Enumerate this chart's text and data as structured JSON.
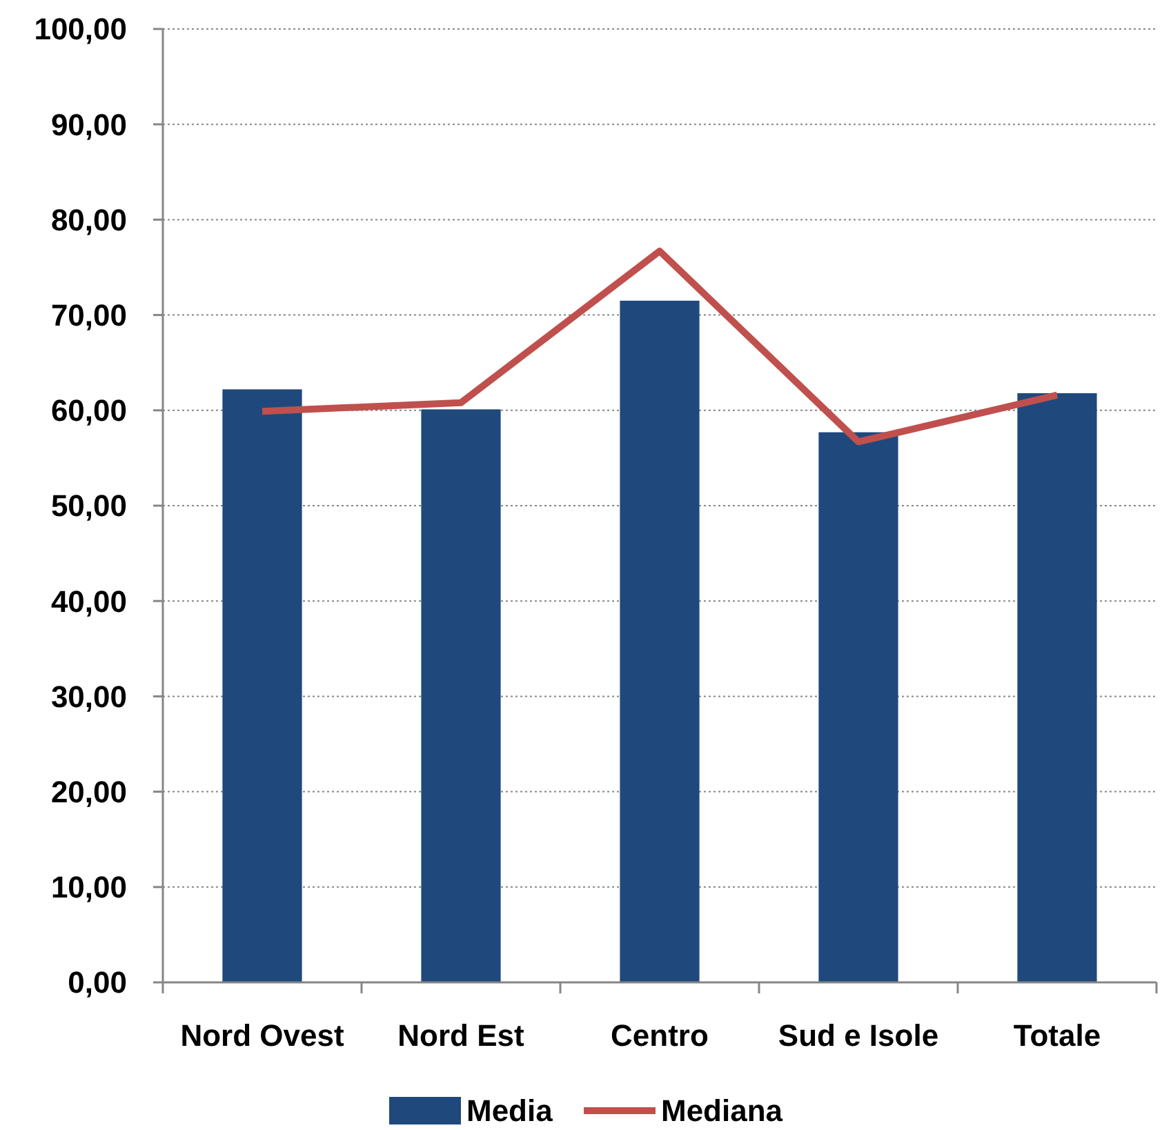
{
  "chart_data": {
    "type": "bar",
    "categories": [
      "Nord Ovest",
      "Nord Est",
      "Centro",
      "Sud e Isole",
      "Totale"
    ],
    "series": [
      {
        "name": "Media",
        "color": "#1f497d",
        "values": [
          62.2,
          60.1,
          71.5,
          57.7,
          61.8
        ]
      },
      {
        "name": "Mediana",
        "type": "line",
        "color": "#c0504d",
        "values": [
          59.9,
          60.8,
          76.7,
          56.7,
          61.6
        ]
      }
    ],
    "ylim": [
      0,
      100
    ],
    "yticks": [
      {
        "value": 0,
        "label": "0,00"
      },
      {
        "value": 10,
        "label": "10,00"
      },
      {
        "value": 20,
        "label": "20,00"
      },
      {
        "value": 30,
        "label": "30,00"
      },
      {
        "value": 40,
        "label": "40,00"
      },
      {
        "value": 50,
        "label": "50,00"
      },
      {
        "value": 60,
        "label": "60,00"
      },
      {
        "value": 70,
        "label": "70,00"
      },
      {
        "value": 80,
        "label": "80,00"
      },
      {
        "value": 90,
        "label": "90,00"
      },
      {
        "value": 100,
        "label": "100,00"
      }
    ],
    "grid": "y",
    "legend": "bottom",
    "marker": "none",
    "line_style": "solid"
  }
}
